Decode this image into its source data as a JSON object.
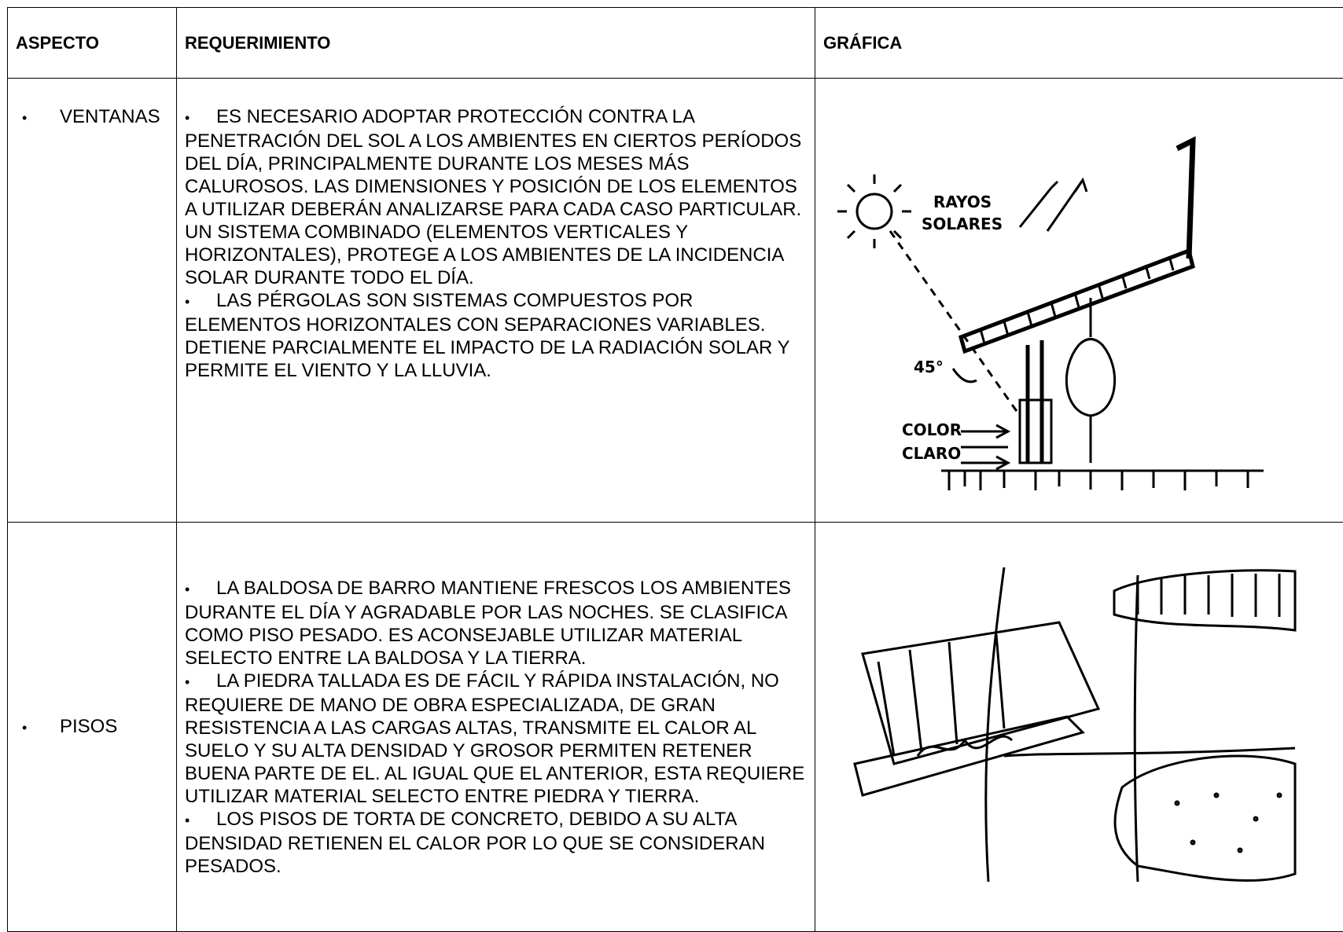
{
  "table": {
    "headers": [
      "ASPECTO",
      "REQUERIMIENTO",
      "GRÁFICA"
    ],
    "rows": [
      {
        "aspect": "VENTANAS",
        "requirements": [
          "ES NECESARIO ADOPTAR PROTECCIÓN CONTRA LA PENETRACIÓN DEL SOL A LOS AMBIENTES EN CIERTOS PERÍODOS DEL DÍA, PRINCIPALMENTE DURANTE LOS MESES MÁS CALUROSOS. LAS DIMENSIONES Y POSICIÓN DE LOS ELEMENTOS  A UTILIZAR DEBERÁN ANALIZARSE PARA CADA CASO PARTICULAR. UN SISTEMA COMBINADO (ELEMENTOS VERTICALES Y HORIZONTALES), PROTEGE A LOS AMBIENTES DE LA INCIDENCIA SOLAR DURANTE TODO EL DÍA.",
          "LAS PÉRGOLAS SON SISTEMAS COMPUESTOS POR ELEMENTOS HORIZONTALES CON SEPARACIONES VARIABLES. DETIENE PARCIALMENTE EL IMPACTO DE LA RADIACIÓN SOLAR Y PERMITE EL VIENTO Y LA LLUVIA."
        ],
        "graphic_labels": [
          "RAYOS",
          "SOLARES",
          "45°",
          "COLOR",
          "CLARO"
        ]
      },
      {
        "aspect": "PISOS",
        "requirements": [
          "LA BALDOSA DE BARRO MANTIENE FRESCOS LOS AMBIENTES DURANTE EL DÍA Y AGRADABLE POR LAS NOCHES. SE CLASIFICA COMO PISO PESADO. ES ACONSEJABLE UTILIZAR MATERIAL SELECTO ENTRE LA BALDOSA Y LA TIERRA.",
          "LA PIEDRA TALLADA ES DE FÁCIL Y RÁPIDA INSTALACIÓN, NO REQUIERE DE MANO DE OBRA ESPECIALIZADA, DE GRAN RESISTENCIA A LAS CARGAS ALTAS, TRANSMITE EL CALOR AL SUELO Y SU ALTA DENSIDAD Y GROSOR PERMITEN RETENER BUENA PARTE DE EL. AL IGUAL QUE EL ANTERIOR, ESTA REQUIERE UTILIZAR MATERIAL SELECTO ENTRE PIEDRA Y TIERRA.",
          "LOS PISOS DE TORTA DE CONCRETO, DEBIDO A SU ALTA DENSIDAD RETIENEN EL CALOR POR LO QUE SE CONSIDERAN PESADOS."
        ]
      }
    ]
  }
}
